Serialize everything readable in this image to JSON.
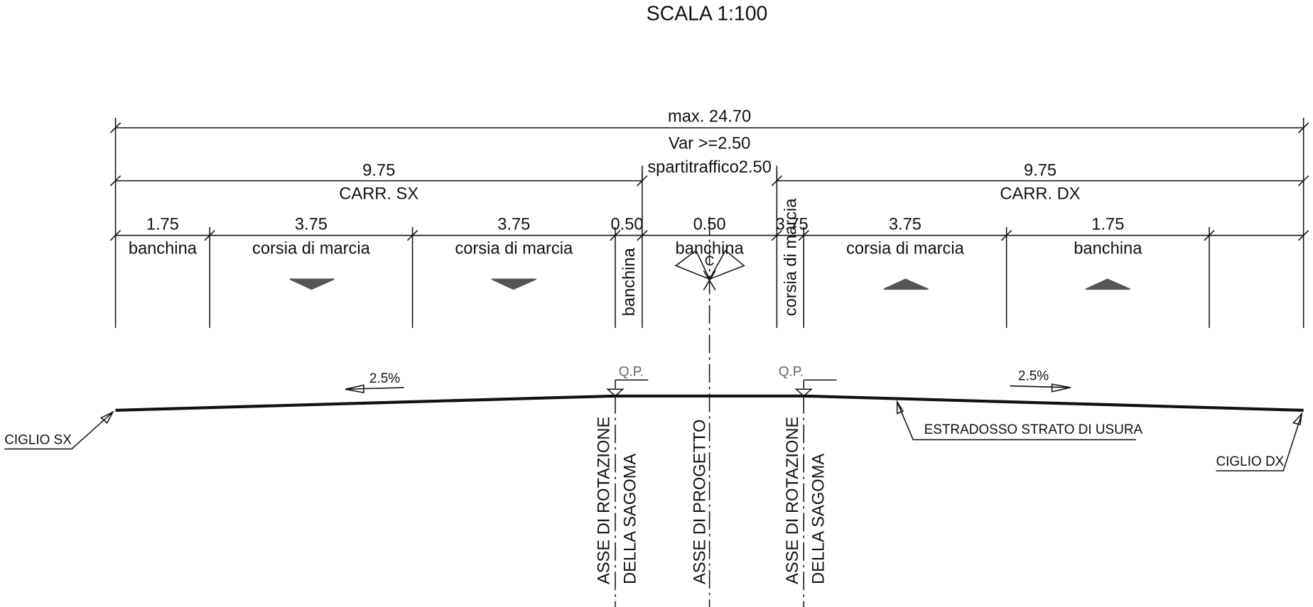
{
  "header": {
    "title": "SCALA 1:100"
  },
  "dimensions": {
    "total": "max. 24.70",
    "median_min": "Var >=2.50",
    "median": "spartitraffico2.50",
    "carriageways": [
      {
        "width": "9.75",
        "label": "CARR. SX"
      },
      {
        "width": "9.75",
        "label": "CARR. DX"
      }
    ],
    "lanes": [
      {
        "width": "1.75",
        "label": "banchina"
      },
      {
        "width": "3.75",
        "label": "corsia di marcia"
      },
      {
        "width": "3.75",
        "label": "corsia di marcia"
      },
      {
        "width": "0.50",
        "label": "banchina"
      },
      {
        "width": "0.50",
        "label": "banchina"
      },
      {
        "width": "3.75",
        "label": "corsia di marcia"
      },
      {
        "width": "3.75",
        "label": "corsia di marcia"
      },
      {
        "width": "1.75",
        "label": "banchina"
      }
    ]
  },
  "centerline_symbol": "C",
  "profile": {
    "qp": [
      "Q.P.",
      "Q.P."
    ],
    "slopes": [
      "2.5%",
      "2.5%"
    ],
    "edge_left": "CIGLIO SX",
    "edge_right": "CIGLIO DX",
    "surface": "ESTRADOSSO STRATO DI USURA"
  },
  "axes": {
    "rotation_left": [
      "ASSE DI ROTAZIONE",
      "DELLA SAGOMA"
    ],
    "project": "ASSE DI PROGETTO",
    "rotation_right": [
      "ASSE DI ROTAZIONE",
      "DELLA SAGOMA"
    ]
  }
}
